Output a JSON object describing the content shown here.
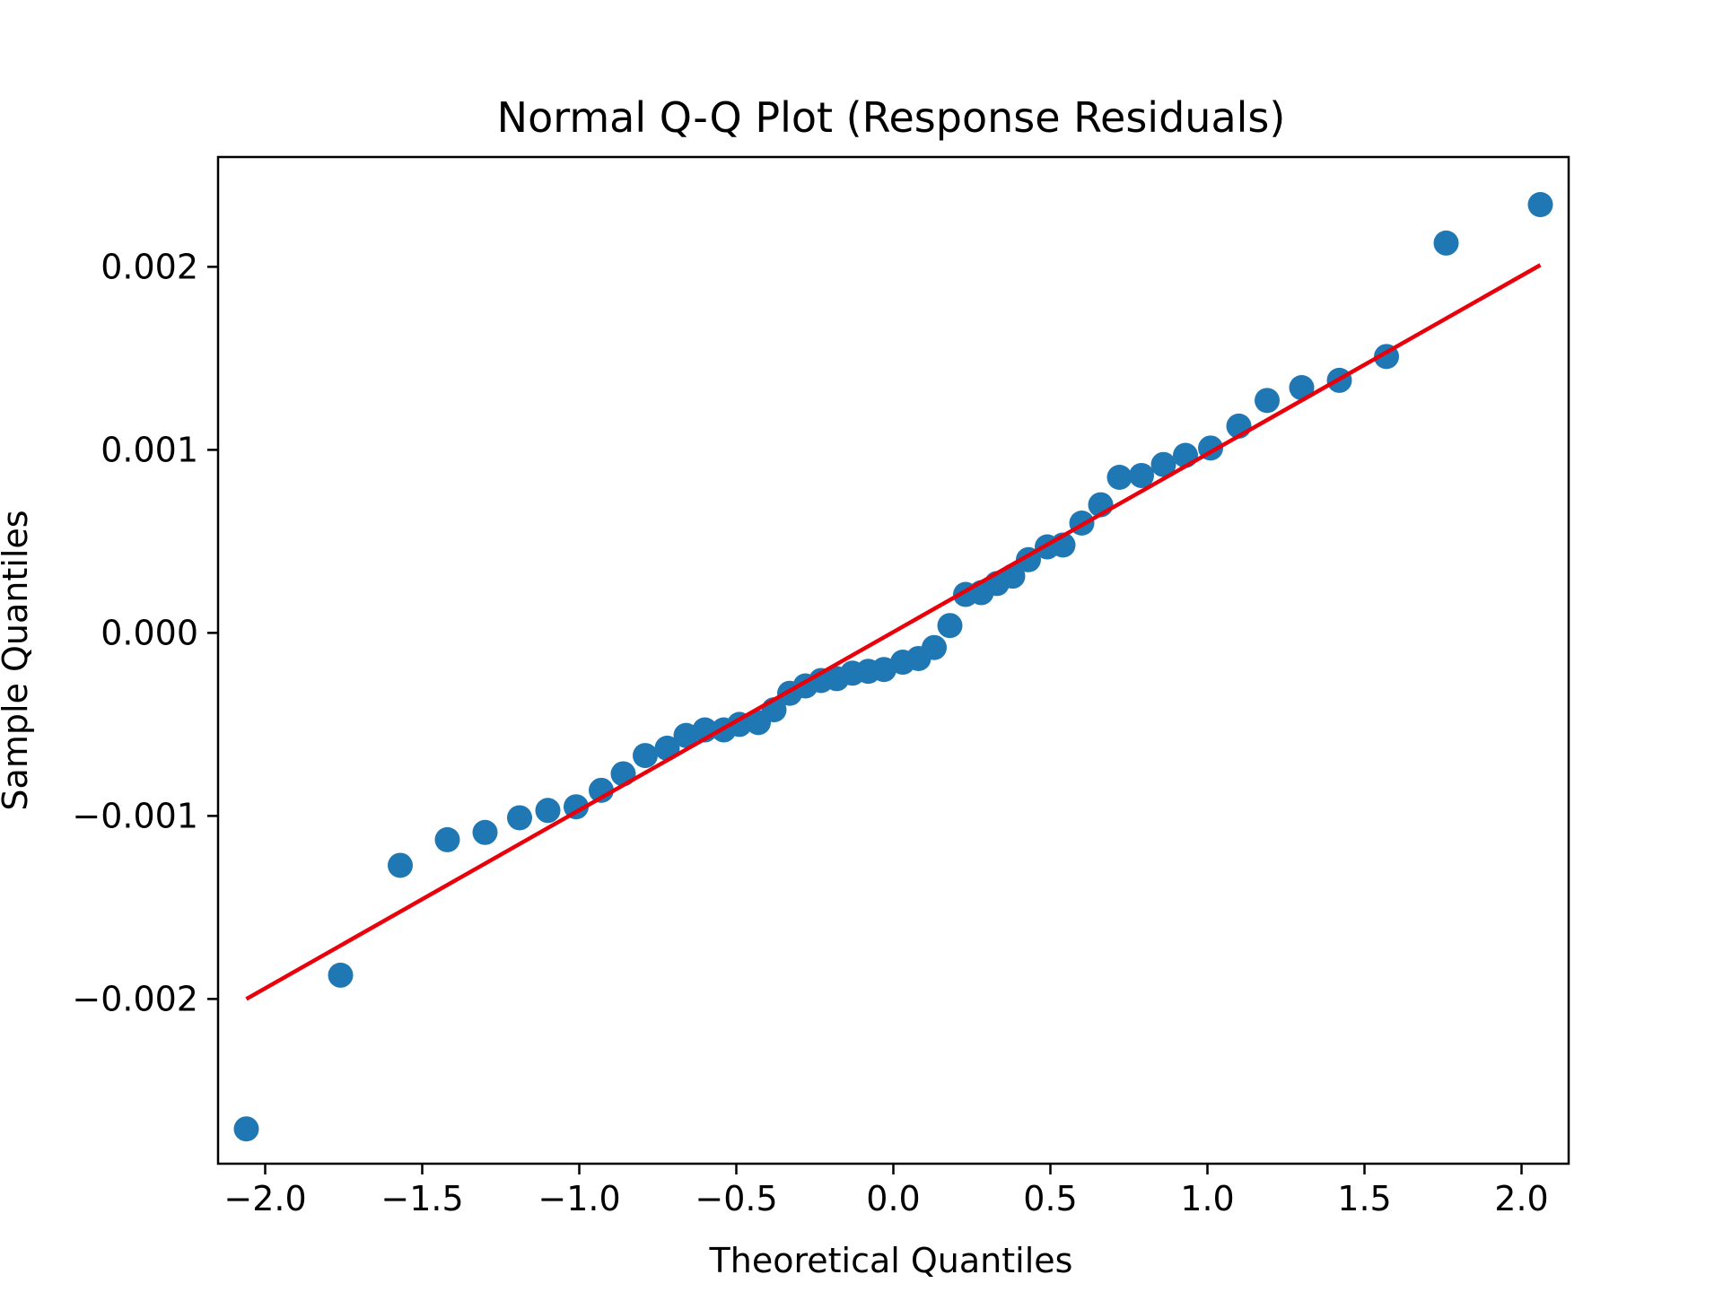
{
  "chart_data": {
    "type": "scatter",
    "title": "Normal Q-Q Plot (Response Residuals)",
    "xlabel": "Theoretical Quantiles",
    "ylabel": "Sample Quantiles",
    "xlim": [
      -2.15,
      2.15
    ],
    "ylim": [
      -0.0029,
      0.0026
    ],
    "xticks": [
      -2.0,
      -1.5,
      -1.0,
      -0.5,
      0.0,
      0.5,
      1.0,
      1.5,
      2.0
    ],
    "xtick_labels": [
      "−2.0",
      "−1.5",
      "−1.0",
      "−0.5",
      "0.0",
      "0.5",
      "1.0",
      "1.5",
      "2.0"
    ],
    "yticks": [
      -0.002,
      -0.001,
      0.0,
      0.001,
      0.002
    ],
    "ytick_labels": [
      "−0.002",
      "−0.001",
      "0.000",
      "0.001",
      "0.002"
    ],
    "grid": false,
    "series": [
      {
        "type": "scatter",
        "color": "#1f77b4",
        "points": [
          [
            -2.06,
            -0.00271
          ],
          [
            -1.76,
            -0.00187
          ],
          [
            -1.57,
            -0.00127
          ],
          [
            -1.42,
            -0.00113
          ],
          [
            -1.3,
            -0.00109
          ],
          [
            -1.19,
            -0.00101
          ],
          [
            -1.1,
            -0.00097
          ],
          [
            -1.01,
            -0.00095
          ],
          [
            -0.93,
            -0.00086
          ],
          [
            -0.86,
            -0.00077
          ],
          [
            -0.79,
            -0.00067
          ],
          [
            -0.72,
            -0.00063
          ],
          [
            -0.66,
            -0.00056
          ],
          [
            -0.6,
            -0.00053
          ],
          [
            -0.54,
            -0.00053
          ],
          [
            -0.49,
            -0.0005
          ],
          [
            -0.43,
            -0.00049
          ],
          [
            -0.38,
            -0.00042
          ],
          [
            -0.33,
            -0.00033
          ],
          [
            -0.28,
            -0.00029
          ],
          [
            -0.23,
            -0.00026
          ],
          [
            -0.18,
            -0.00025
          ],
          [
            -0.13,
            -0.00022
          ],
          [
            -0.08,
            -0.00021
          ],
          [
            -0.03,
            -0.0002
          ],
          [
            0.03,
            -0.00016
          ],
          [
            0.08,
            -0.00014
          ],
          [
            0.13,
            -8e-05
          ],
          [
            0.18,
            4e-05
          ],
          [
            0.23,
            0.00021
          ],
          [
            0.28,
            0.00022
          ],
          [
            0.33,
            0.00027
          ],
          [
            0.38,
            0.00031
          ],
          [
            0.43,
            0.0004
          ],
          [
            0.49,
            0.00047
          ],
          [
            0.54,
            0.00048
          ],
          [
            0.6,
            0.0006
          ],
          [
            0.66,
            0.0007
          ],
          [
            0.72,
            0.00085
          ],
          [
            0.79,
            0.00086
          ],
          [
            0.86,
            0.00092
          ],
          [
            0.93,
            0.00097
          ],
          [
            1.01,
            0.00101
          ],
          [
            1.1,
            0.00113
          ],
          [
            1.19,
            0.00127
          ],
          [
            1.3,
            0.00134
          ],
          [
            1.42,
            0.00138
          ],
          [
            1.57,
            0.00151
          ],
          [
            1.76,
            0.00213
          ],
          [
            2.06,
            0.00234
          ]
        ]
      },
      {
        "type": "line",
        "color": "#e8000b",
        "points": [
          [
            -2.06,
            -0.002
          ],
          [
            2.06,
            0.00201
          ]
        ]
      }
    ]
  }
}
